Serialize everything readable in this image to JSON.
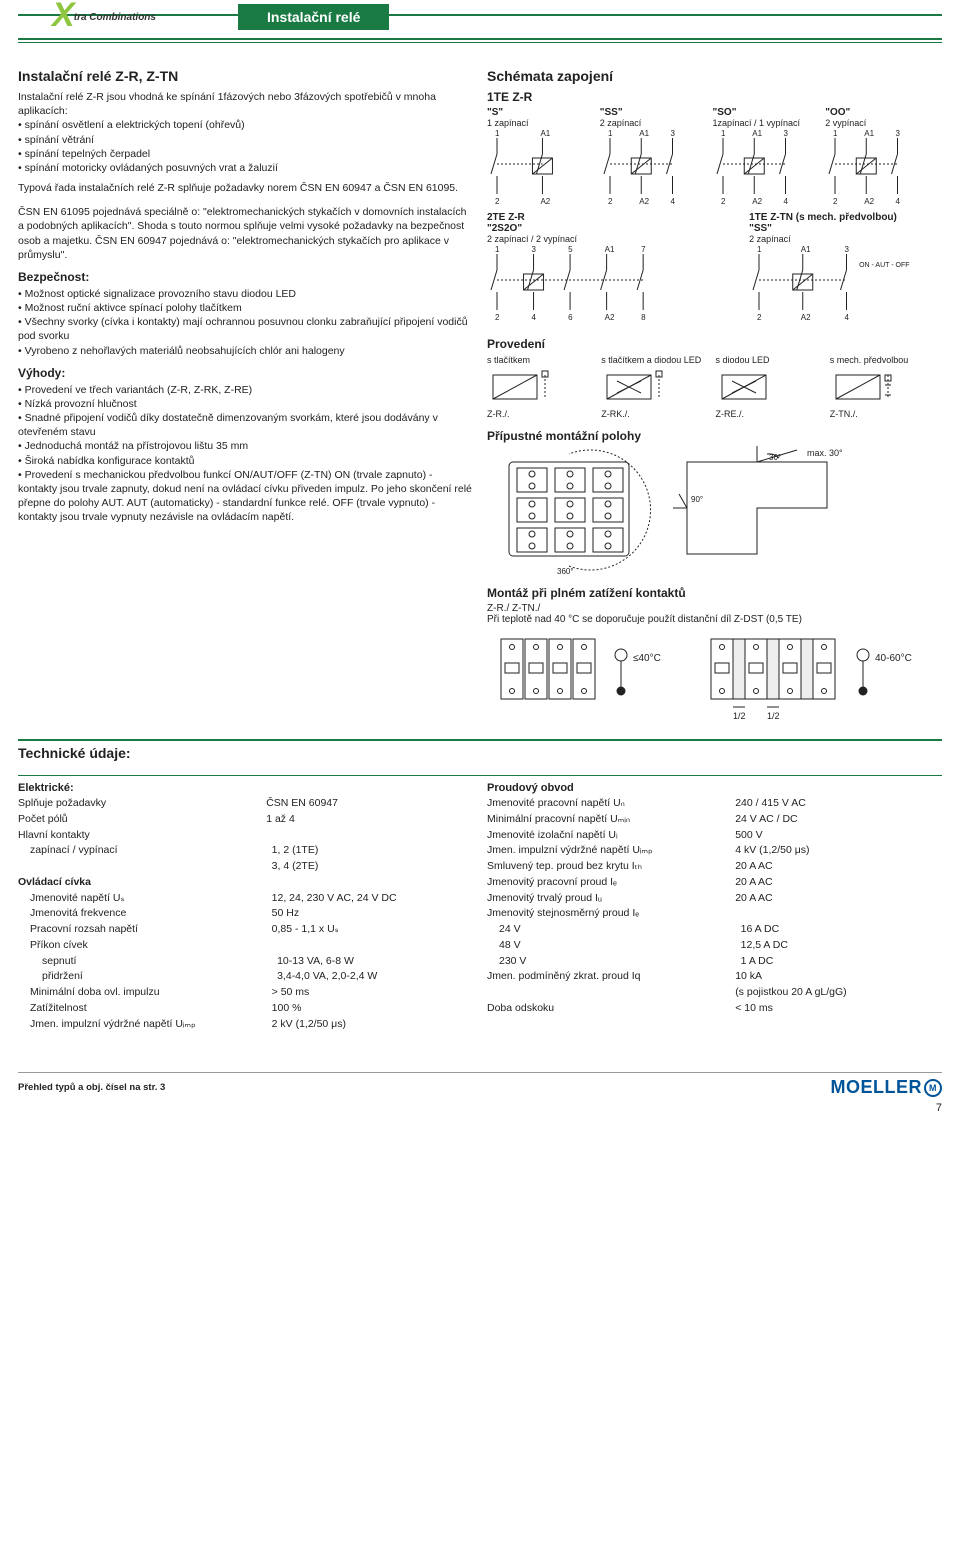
{
  "colors": {
    "green": "#1a7a44",
    "lightgreen": "#8fc63f",
    "blue": "#005499",
    "gray": "#888",
    "black": "#222"
  },
  "header": {
    "title": "Instalační relé",
    "logo_x": "X",
    "logo_combo": "tra Combinations"
  },
  "main": {
    "title": "Instalační relé Z-R, Z-TN",
    "intro": "Instalační relé Z-R jsou vhodná ke spínání 1fázových nebo 3fázových spotřebičů v mnoha aplikacích:",
    "intro_bullets": [
      "spínání osvětlení a elektrických topení (ohřevů)",
      "spínání větrání",
      "spínání tepelných čerpadel",
      "spínání motoricky ovládaných posuvných vrat a žaluzií"
    ],
    "intro2": "Typová řada instalačních relé Z-R splňuje požadavky norem ČSN EN 60947 a ČSN EN 61095.",
    "para2": "ČSN EN 61095 pojednává speciálně o: \"elektromechanických stykačích v domovních instalacích a podobných aplikacích\". Shoda s touto normou splňuje velmi vysoké požadavky na bezpečnost osob a majetku. ČSN EN 60947 pojednává o: \"elektromechanických stykačích pro aplikace v průmyslu\".",
    "bezp_title": "Bezpečnost:",
    "bezp_bullets": [
      "Možnost optické signalizace provozního stavu diodou LED",
      "Možnost ruční aktivce spínací polohy tlačítkem",
      "Všechny svorky (cívka i kontakty) mají ochrannou posuvnou clonku zabraňující připojení vodičů pod svorku",
      "Vyrobeno z nehořlavých materiálů neobsahujících chlór ani halogeny"
    ],
    "vyh_title": "Výhody:",
    "vyh_bullets": [
      "Provedení ve třech variantách (Z-R, Z-RK, Z-RE)",
      "Nízká provozní hlučnost",
      "Snadné připojení vodičů díky dostatečně dimenzovaným svorkám, které jsou dodávány v otevřeném stavu",
      "Jednoduchá montáž na přístrojovou lištu 35 mm",
      "Široká nabídka konfigurace kontaktů",
      "Provedení s mechanickou předvolbou funkcí ON/AUT/OFF (Z-TN) ON (trvale zapnuto) - kontakty jsou trvale zapnuty, dokud není na ovládací cívku přiveden impulz. Po jeho skončení relé přepne do polohy AUT. AUT (automaticky) - standardní funkce relé. OFF (trvale vypnuto) - kontakty jsou trvale vypnuty nezávisle na ovládacím napětí."
    ]
  },
  "schemata": {
    "title": "Schémata zapojení",
    "row1_title": "1TE Z-R",
    "row1": [
      {
        "tag": "\"S\"",
        "desc": "1 zapínací",
        "top": [
          "1",
          "A1"
        ],
        "bot": [
          "2",
          "A2"
        ],
        "poles": 2
      },
      {
        "tag": "\"SS\"",
        "desc": "2 zapínací",
        "top": [
          "1",
          "A1",
          "3"
        ],
        "bot": [
          "2",
          "A2",
          "4"
        ],
        "poles": 3
      },
      {
        "tag": "\"SO\"",
        "desc": "1zapínací / 1 vypínací",
        "top": [
          "1",
          "A1",
          "3"
        ],
        "bot": [
          "2",
          "A2",
          "4"
        ],
        "poles": 3
      },
      {
        "tag": "\"OO\"",
        "desc": "2 vypínací",
        "top": [
          "1",
          "A1",
          "3"
        ],
        "bot": [
          "2",
          "A2",
          "4"
        ],
        "poles": 3
      }
    ],
    "row2a": {
      "title": "2TE Z-R",
      "tag": "\"2S2O\"",
      "desc": "2 zapínací / 2 vypínací",
      "top": [
        "1",
        "3",
        "5",
        "A1",
        "7"
      ],
      "bot": [
        "2",
        "4",
        "6",
        "A2",
        "8"
      ]
    },
    "row2b": {
      "title": "1TE Z-TN (s mech. předvolbou)",
      "tag": "\"SS\"",
      "desc": "2 zapínací",
      "top": [
        "1",
        "A1",
        "3"
      ],
      "bot": [
        "2",
        "A2",
        "4"
      ],
      "switch": "ON - AUT - OFF"
    }
  },
  "provedeni": {
    "title": "Provedení",
    "items": [
      {
        "label": "s tlačítkem",
        "code": "Z-R./."
      },
      {
        "label": "s tlačítkem a diodou LED",
        "code": "Z-RK./."
      },
      {
        "label": "s diodou LED",
        "code": "Z-RE./."
      },
      {
        "label": "s mech. předvolbou",
        "code": "Z-TN./."
      }
    ]
  },
  "polohy": {
    "title": "Přípustné montážní polohy",
    "max": "max. 30°",
    "angles": [
      "30°",
      "90°",
      "360°"
    ]
  },
  "montaz": {
    "title": "Montáž při plném zatížení kontaktů",
    "sub": "Z-R./        Z-TN./",
    "note": "Při teplotě nad 40 °C se doporučuje použít distanční díl Z-DST (0,5 TE)",
    "t1": "≤40°C",
    "t2": "40-60°C",
    "half": "1/2"
  },
  "tech": {
    "title": "Technické údaje:",
    "left": {
      "head": "Elektrické:",
      "rows": [
        {
          "k": "Splňuje požadavky",
          "v": "ČSN EN 60947",
          "i": 0
        },
        {
          "k": "Počet pólů",
          "v": "1 až 4",
          "i": 0
        },
        {
          "k": "Hlavní kontakty",
          "v": "",
          "i": 0
        },
        {
          "k": "zapínací / vypínací",
          "v": "1, 2 (1TE)",
          "i": 1
        },
        {
          "k": "",
          "v": "3, 4 (2TE)",
          "i": 1
        },
        {
          "k": "Ovládací cívka",
          "v": "",
          "i": 0,
          "bold": true
        },
        {
          "k": "Jmenovité napětí Uₛ",
          "v": "12, 24, 230 V AC, 24 V DC",
          "i": 1
        },
        {
          "k": "Jmenovitá frekvence",
          "v": "50 Hz",
          "i": 1
        },
        {
          "k": "Pracovní rozsah napětí",
          "v": "0,85 - 1,1 x Uₛ",
          "i": 1
        },
        {
          "k": "Příkon cívek",
          "v": "",
          "i": 1
        },
        {
          "k": "sepnutí",
          "v": "10-13 VA, 6-8 W",
          "i": 2
        },
        {
          "k": "přidržení",
          "v": "3,4-4,0 VA, 2,0-2,4 W",
          "i": 2
        },
        {
          "k": "Minimální doba ovl. impulzu",
          "v": "> 50 ms",
          "i": 1
        },
        {
          "k": "Zatížitelnost",
          "v": "100 %",
          "i": 1
        },
        {
          "k": "Jmen. impulzní výdržné napětí Uᵢₘₚ",
          "v": "2 kV (1,2/50 μs)",
          "i": 1
        }
      ]
    },
    "right": {
      "head": "Proudový obvod",
      "rows": [
        {
          "k": "Jmenovité pracovní napětí Uₙ",
          "v": "240 / 415 V AC",
          "i": 0
        },
        {
          "k": "Minimální pracovní napětí Uₘᵢₙ",
          "v": "24 V AC / DC",
          "i": 0
        },
        {
          "k": "Jmenovité izolační napětí Uᵢ",
          "v": "500 V",
          "i": 0
        },
        {
          "k": "Jmen. impulzní výdržné napětí Uᵢₘₚ",
          "v": "4 kV (1,2/50 μs)",
          "i": 0
        },
        {
          "k": "Smluvený tep. proud bez krytu Iₜₕ",
          "v": "20 A AC",
          "i": 0
        },
        {
          "k": "Jmenovitý pracovní proud Iₑ",
          "v": "20 A AC",
          "i": 0
        },
        {
          "k": "Jmenovitý trvalý proud Iᵤ",
          "v": "20 A AC",
          "i": 0
        },
        {
          "k": "Jmenovitý stejnosměrný proud Iₑ",
          "v": "",
          "i": 0
        },
        {
          "k": "24 V",
          "v": "16 A DC",
          "i": 1
        },
        {
          "k": "48 V",
          "v": "12,5 A DC",
          "i": 1
        },
        {
          "k": "230 V",
          "v": "1 A DC",
          "i": 1
        },
        {
          "k": "Jmen. podmíněný zkrat. proud Iq",
          "v": "10 kA",
          "i": 0
        },
        {
          "k": "",
          "v": "(s pojistkou 20 A gL/gG)",
          "i": 0
        },
        {
          "k": "Doba odskoku",
          "v": "< 10 ms",
          "i": 0
        }
      ]
    }
  },
  "footer": {
    "ref": "Přehled typů a obj. čísel na str. 3",
    "brand": "MOELLER",
    "pagenum": "7"
  }
}
